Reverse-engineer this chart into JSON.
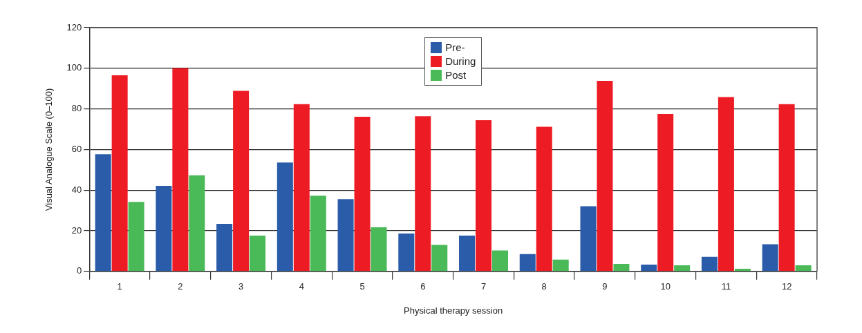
{
  "chart_data": {
    "type": "bar",
    "xlabel": "Physical therapy session",
    "ylabel": "Visual Analogue Scale (0–100)",
    "categories": [
      "1",
      "2",
      "3",
      "4",
      "5",
      "6",
      "7",
      "8",
      "9",
      "10",
      "11",
      "12"
    ],
    "series": [
      {
        "name": "Pre-",
        "color": "#2a5caa",
        "values": [
          57.7,
          42.1,
          23.4,
          53.6,
          35.6,
          18.6,
          17.6,
          8.5,
          32.1,
          3.3,
          7.2,
          13.4
        ]
      },
      {
        "name": "During",
        "color": "#ed1c24",
        "values": [
          96.5,
          100,
          88.9,
          82.3,
          76.1,
          76.4,
          74.4,
          71.2,
          93.8,
          77.5,
          85.8,
          82.3
        ]
      },
      {
        "name": "Post",
        "color": "#4ab957",
        "values": [
          34.2,
          47.3,
          17.6,
          37.3,
          21.7,
          13.0,
          10.3,
          5.8,
          3.7,
          3.0,
          1.3,
          3.0
        ]
      }
    ],
    "ylim": [
      0,
      120
    ],
    "yticks": [
      0,
      20,
      40,
      60,
      80,
      100,
      120
    ],
    "grid": "y",
    "legend": "top"
  }
}
